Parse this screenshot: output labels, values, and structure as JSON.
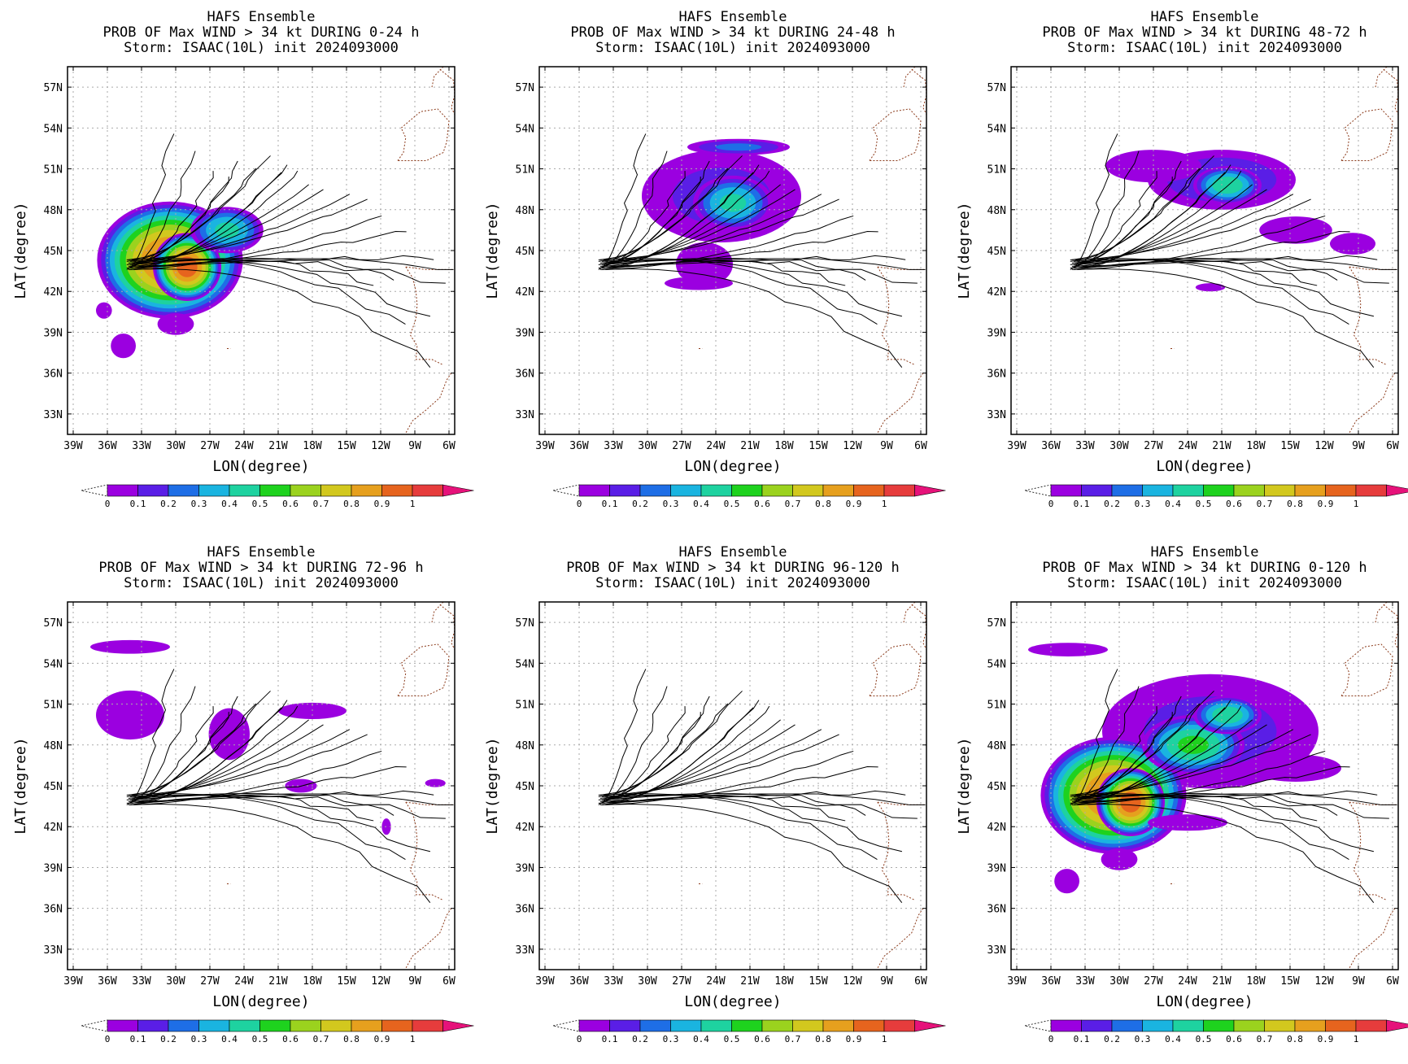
{
  "figure": {
    "colorbar": {
      "levels": [
        0,
        0.1,
        0.2,
        0.3,
        0.4,
        0.5,
        0.6,
        0.7,
        0.8,
        0.9,
        1
      ],
      "tick_labels": [
        "0",
        "0.1",
        "0.2",
        "0.3",
        "0.4",
        "0.5",
        "0.6",
        "0.7",
        "0.8",
        "0.9",
        "1"
      ],
      "colors": [
        "#9b00e0",
        "#5a1ee6",
        "#1e6ee6",
        "#1ab4e0",
        "#1ed2a0",
        "#1ed21e",
        "#9bd21e",
        "#d2c81e",
        "#e6a01e",
        "#e6641e",
        "#e63c3c"
      ],
      "over_color": "#e6127a"
    },
    "colors": {
      "track": "#000000",
      "coast": "#8b3a1a",
      "grid": "#aaaaaa"
    }
  },
  "chart_data": [
    {
      "type": "heatmap",
      "title": [
        "HAFS Ensemble",
        "PROB OF Max WIND > 34 kt DURING  0-24 h",
        "Storm: ISAAC(10L) init 2024093000"
      ],
      "xlabel": "LON(degree)",
      "ylabel": "LAT(degree)",
      "xlim": [
        -39.5,
        -5.5
      ],
      "ylim": [
        31.5,
        58.5
      ],
      "xticks": [
        -39,
        -36,
        -33,
        -30,
        -27,
        -24,
        -21,
        -18,
        -15,
        -12,
        -9,
        -6
      ],
      "xtick_labels": [
        "39W",
        "36W",
        "33W",
        "30W",
        "27W",
        "24W",
        "21W",
        "18W",
        "15W",
        "12W",
        "9W",
        "6W"
      ],
      "yticks": [
        33,
        36,
        39,
        42,
        45,
        48,
        51,
        54,
        57
      ],
      "ytick_labels": [
        "33N",
        "36N",
        "39N",
        "42N",
        "45N",
        "48N",
        "51N",
        "54N",
        "57N"
      ],
      "grid": true,
      "colorbar": "bottom",
      "blobs": [
        {
          "lon": -30.5,
          "lat": 44.3,
          "rx": 6.4,
          "ry": 4.3,
          "peak": 0.95
        },
        {
          "lon": -29.0,
          "lat": 43.8,
          "rx": 3.0,
          "ry": 2.5,
          "peak": 0.99
        },
        {
          "lon": -25.5,
          "lat": 46.5,
          "rx": 3.2,
          "ry": 1.7,
          "peak": 0.45
        },
        {
          "lon": -30.0,
          "lat": 39.6,
          "rx": 1.6,
          "ry": 0.8,
          "peak": 0.08
        },
        {
          "lon": -34.6,
          "lat": 38.0,
          "rx": 1.1,
          "ry": 0.9,
          "peak": 0.07
        },
        {
          "lon": -36.3,
          "lat": 40.6,
          "rx": 0.7,
          "ry": 0.6,
          "peak": 0.05
        }
      ]
    },
    {
      "type": "heatmap",
      "title": [
        "HAFS Ensemble",
        "PROB OF Max WIND > 34 kt DURING 24-48 h",
        "Storm: ISAAC(10L) init 2024093000"
      ],
      "xlabel": "LON(degree)",
      "ylabel": "LAT(degree)",
      "xlim": [
        -39.5,
        -5.5
      ],
      "ylim": [
        31.5,
        58.5
      ],
      "xticks": [
        -39,
        -36,
        -33,
        -30,
        -27,
        -24,
        -21,
        -18,
        -15,
        -12,
        -9,
        -6
      ],
      "xtick_labels": [
        "39W",
        "36W",
        "33W",
        "30W",
        "27W",
        "24W",
        "21W",
        "18W",
        "15W",
        "12W",
        "9W",
        "6W"
      ],
      "yticks": [
        33,
        36,
        39,
        42,
        45,
        48,
        51,
        54,
        57
      ],
      "ytick_labels": [
        "33N",
        "36N",
        "39N",
        "42N",
        "45N",
        "48N",
        "51N",
        "54N",
        "57N"
      ],
      "grid": true,
      "colorbar": "bottom",
      "blobs": [
        {
          "lon": -23.5,
          "lat": 49.0,
          "rx": 7.0,
          "ry": 3.4,
          "peak": 0.16
        },
        {
          "lon": -22.5,
          "lat": 48.5,
          "rx": 3.5,
          "ry": 2.0,
          "peak": 0.45
        },
        {
          "lon": -22.0,
          "lat": 52.6,
          "rx": 4.5,
          "ry": 0.6,
          "peak": 0.25
        },
        {
          "lon": -25.0,
          "lat": 44.0,
          "rx": 2.5,
          "ry": 1.6,
          "peak": 0.08
        },
        {
          "lon": -25.5,
          "lat": 42.6,
          "rx": 3.0,
          "ry": 0.5,
          "peak": 0.05
        }
      ]
    },
    {
      "type": "heatmap",
      "title": [
        "HAFS Ensemble",
        "PROB OF Max WIND > 34 kt DURING 48-72 h",
        "Storm: ISAAC(10L) init 2024093000"
      ],
      "xlabel": "LON(degree)",
      "ylabel": "LAT(degree)",
      "xlim": [
        -39.5,
        -5.5
      ],
      "ylim": [
        31.5,
        58.5
      ],
      "xticks": [
        -39,
        -36,
        -33,
        -30,
        -27,
        -24,
        -21,
        -18,
        -15,
        -12,
        -9,
        -6
      ],
      "xtick_labels": [
        "39W",
        "36W",
        "33W",
        "30W",
        "27W",
        "24W",
        "21W",
        "18W",
        "15W",
        "12W",
        "9W",
        "6W"
      ],
      "yticks": [
        33,
        36,
        39,
        42,
        45,
        48,
        51,
        54,
        57
      ],
      "ytick_labels": [
        "33N",
        "36N",
        "39N",
        "42N",
        "45N",
        "48N",
        "51N",
        "54N",
        "57N"
      ],
      "grid": true,
      "colorbar": "bottom",
      "blobs": [
        {
          "lon": -21.0,
          "lat": 50.2,
          "rx": 6.5,
          "ry": 2.2,
          "peak": 0.22
        },
        {
          "lon": -20.5,
          "lat": 49.8,
          "rx": 3.0,
          "ry": 1.4,
          "peak": 0.5
        },
        {
          "lon": -27.0,
          "lat": 51.2,
          "rx": 4.2,
          "ry": 1.2,
          "peak": 0.09
        },
        {
          "lon": -14.5,
          "lat": 46.5,
          "rx": 3.2,
          "ry": 1.0,
          "peak": 0.06
        },
        {
          "lon": -9.5,
          "lat": 45.5,
          "rx": 2.0,
          "ry": 0.8,
          "peak": 0.05
        },
        {
          "lon": -22.0,
          "lat": 42.3,
          "rx": 1.3,
          "ry": 0.3,
          "peak": 0.05
        }
      ]
    },
    {
      "type": "heatmap",
      "title": [
        "HAFS Ensemble",
        "PROB OF Max WIND > 34 kt DURING 72-96 h",
        "Storm: ISAAC(10L) init 2024093000"
      ],
      "xlabel": "LON(degree)",
      "ylabel": "LAT(degree)",
      "xlim": [
        -39.5,
        -5.5
      ],
      "ylim": [
        31.5,
        58.5
      ],
      "xticks": [
        -39,
        -36,
        -33,
        -30,
        -27,
        -24,
        -21,
        -18,
        -15,
        -12,
        -9,
        -6
      ],
      "xtick_labels": [
        "39W",
        "36W",
        "33W",
        "30W",
        "27W",
        "24W",
        "21W",
        "18W",
        "15W",
        "12W",
        "9W",
        "6W"
      ],
      "yticks": [
        33,
        36,
        39,
        42,
        45,
        48,
        51,
        54,
        57
      ],
      "ytick_labels": [
        "33N",
        "36N",
        "39N",
        "42N",
        "45N",
        "48N",
        "51N",
        "54N",
        "57N"
      ],
      "grid": true,
      "colorbar": "bottom",
      "blobs": [
        {
          "lon": -34.0,
          "lat": 50.2,
          "rx": 3.0,
          "ry": 1.8,
          "peak": 0.06
        },
        {
          "lon": -25.3,
          "lat": 48.8,
          "rx": 1.8,
          "ry": 1.9,
          "peak": 0.08
        },
        {
          "lon": -34.0,
          "lat": 55.2,
          "rx": 3.5,
          "ry": 0.5,
          "peak": 0.05
        },
        {
          "lon": -18.0,
          "lat": 50.5,
          "rx": 3.0,
          "ry": 0.6,
          "peak": 0.05
        },
        {
          "lon": -19.0,
          "lat": 45.0,
          "rx": 1.4,
          "ry": 0.5,
          "peak": 0.05
        },
        {
          "lon": -11.5,
          "lat": 42.0,
          "rx": 0.4,
          "ry": 0.6,
          "peak": 0.05
        },
        {
          "lon": -7.2,
          "lat": 45.2,
          "rx": 0.9,
          "ry": 0.3,
          "peak": 0.05
        }
      ]
    },
    {
      "type": "heatmap",
      "title": [
        "HAFS Ensemble",
        "PROB OF Max WIND > 34 kt DURING 96-120 h",
        "Storm: ISAAC(10L) init 2024093000"
      ],
      "xlabel": "LON(degree)",
      "ylabel": "LAT(degree)",
      "xlim": [
        -39.5,
        -5.5
      ],
      "ylim": [
        31.5,
        58.5
      ],
      "xticks": [
        -39,
        -36,
        -33,
        -30,
        -27,
        -24,
        -21,
        -18,
        -15,
        -12,
        -9,
        -6
      ],
      "xtick_labels": [
        "39W",
        "36W",
        "33W",
        "30W",
        "27W",
        "24W",
        "21W",
        "18W",
        "15W",
        "12W",
        "9W",
        "6W"
      ],
      "yticks": [
        33,
        36,
        39,
        42,
        45,
        48,
        51,
        54,
        57
      ],
      "ytick_labels": [
        "33N",
        "36N",
        "39N",
        "42N",
        "45N",
        "48N",
        "51N",
        "54N",
        "57N"
      ],
      "grid": true,
      "colorbar": "bottom",
      "blobs": []
    },
    {
      "type": "heatmap",
      "title": [
        "HAFS Ensemble",
        "PROB OF Max WIND > 34 kt DURING 0-120 h",
        "Storm: ISAAC(10L) init 2024093000"
      ],
      "xlabel": "LON(degree)",
      "ylabel": "LAT(degree)",
      "xlim": [
        -39.5,
        -5.5
      ],
      "ylim": [
        31.5,
        58.5
      ],
      "xticks": [
        -39,
        -36,
        -33,
        -30,
        -27,
        -24,
        -21,
        -18,
        -15,
        -12,
        -9,
        -6
      ],
      "xtick_labels": [
        "39W",
        "36W",
        "33W",
        "30W",
        "27W",
        "24W",
        "21W",
        "18W",
        "15W",
        "12W",
        "9W",
        "6W"
      ],
      "yticks": [
        33,
        36,
        39,
        42,
        45,
        48,
        51,
        54,
        57
      ],
      "ytick_labels": [
        "33N",
        "36N",
        "39N",
        "42N",
        "45N",
        "48N",
        "51N",
        "54N",
        "57N"
      ],
      "grid": true,
      "colorbar": "bottom",
      "blobs": [
        {
          "lon": -22.0,
          "lat": 49.0,
          "rx": 9.5,
          "ry": 4.2,
          "peak": 0.16
        },
        {
          "lon": -30.5,
          "lat": 44.3,
          "rx": 6.4,
          "ry": 4.3,
          "peak": 0.95
        },
        {
          "lon": -29.0,
          "lat": 43.8,
          "rx": 3.0,
          "ry": 2.5,
          "peak": 0.99
        },
        {
          "lon": -23.5,
          "lat": 48.0,
          "rx": 4.5,
          "ry": 2.2,
          "peak": 0.55
        },
        {
          "lon": -20.5,
          "lat": 50.2,
          "rx": 3.0,
          "ry": 1.4,
          "peak": 0.5
        },
        {
          "lon": -14.5,
          "lat": 46.3,
          "rx": 4.0,
          "ry": 1.0,
          "peak": 0.07
        },
        {
          "lon": -34.5,
          "lat": 55.0,
          "rx": 3.5,
          "ry": 0.5,
          "peak": 0.05
        },
        {
          "lon": -30.0,
          "lat": 39.6,
          "rx": 1.6,
          "ry": 0.8,
          "peak": 0.08
        },
        {
          "lon": -34.6,
          "lat": 38.0,
          "rx": 1.1,
          "ry": 0.9,
          "peak": 0.07
        },
        {
          "lon": -24.0,
          "lat": 42.3,
          "rx": 3.5,
          "ry": 0.6,
          "peak": 0.06
        }
      ]
    }
  ]
}
